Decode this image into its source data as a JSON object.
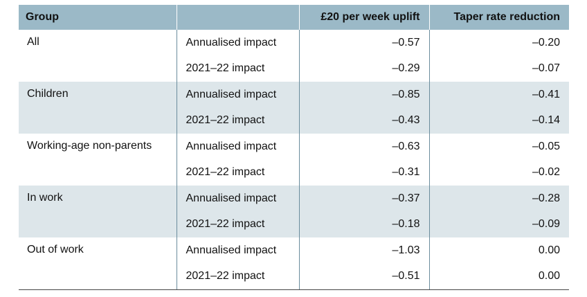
{
  "table": {
    "headers": [
      "Group",
      "",
      "£20 per week uplift",
      "Taper rate reduction"
    ],
    "groups": [
      {
        "name": "All",
        "rows": [
          {
            "label": "Annualised impact",
            "uplift": "–0.57",
            "taper": "–0.20"
          },
          {
            "label": "2021–22 impact",
            "uplift": "–0.29",
            "taper": "–0.07"
          }
        ]
      },
      {
        "name": "Children",
        "rows": [
          {
            "label": "Annualised impact",
            "uplift": "–0.85",
            "taper": "–0.41"
          },
          {
            "label": "2021–22 impact",
            "uplift": "–0.43",
            "taper": "–0.14"
          }
        ]
      },
      {
        "name": "Working-age non-parents",
        "rows": [
          {
            "label": "Annualised impact",
            "uplift": "–0.63",
            "taper": "–0.05"
          },
          {
            "label": "2021–22 impact",
            "uplift": "–0.31",
            "taper": "–0.02"
          }
        ]
      },
      {
        "name": "In work",
        "rows": [
          {
            "label": "Annualised impact",
            "uplift": "–0.37",
            "taper": "–0.28"
          },
          {
            "label": "2021–22 impact",
            "uplift": "–0.18",
            "taper": "–0.09"
          }
        ]
      },
      {
        "name": "Out of work",
        "rows": [
          {
            "label": "Annualised impact",
            "uplift": "–1.03",
            "taper": "0.00"
          },
          {
            "label": "2021–22 impact",
            "uplift": "–0.51",
            "taper": "0.00"
          }
        ]
      }
    ],
    "colors": {
      "header_background": "#9bb9c7",
      "band_background": "#dde6ea",
      "column_divider": "#6a8c9c"
    }
  }
}
